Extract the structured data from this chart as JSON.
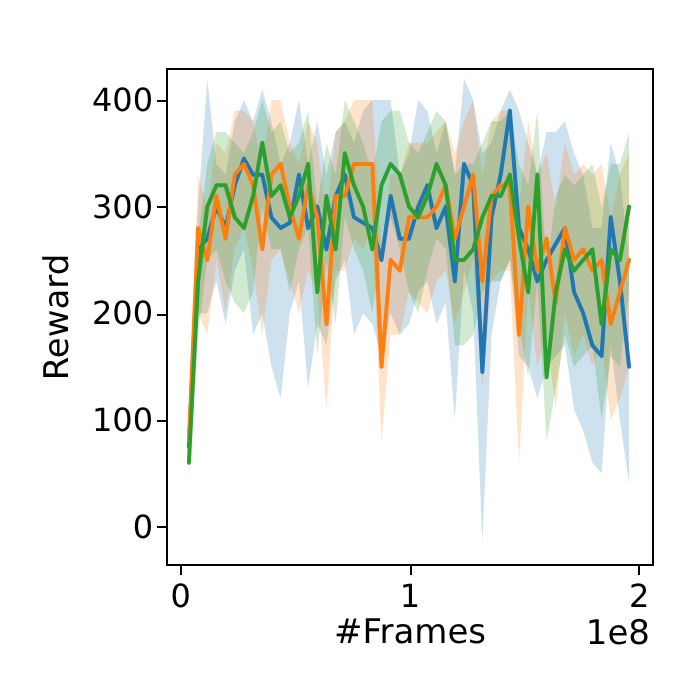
{
  "chart_data": {
    "type": "line",
    "xlabel": "#Frames",
    "ylabel": "Reward",
    "annotations": [
      "1e8"
    ],
    "x": [
      0.04,
      0.08,
      0.12,
      0.16,
      0.2,
      0.24,
      0.28,
      0.32,
      0.36,
      0.4,
      0.44,
      0.48,
      0.52,
      0.56,
      0.6,
      0.64,
      0.68,
      0.72,
      0.76,
      0.8,
      0.84,
      0.88,
      0.92,
      0.96,
      1.0,
      1.04,
      1.08,
      1.12,
      1.16,
      1.2,
      1.24,
      1.28,
      1.32,
      1.36,
      1.4,
      1.44,
      1.48,
      1.52,
      1.56,
      1.6,
      1.64,
      1.68,
      1.72,
      1.76,
      1.8,
      1.84,
      1.88,
      1.92,
      1.96
    ],
    "series": [
      {
        "color": "#1f77b4",
        "values": [
          75,
          260,
          270,
          300,
          280,
          320,
          345,
          330,
          330,
          290,
          280,
          285,
          330,
          280,
          300,
          260,
          310,
          330,
          290,
          285,
          280,
          250,
          310,
          270,
          270,
          300,
          320,
          280,
          300,
          230,
          340,
          320,
          145,
          290,
          330,
          390,
          280,
          260,
          230,
          250,
          265,
          280,
          220,
          200,
          170,
          160,
          290,
          230,
          150
        ],
        "lower": [
          60,
          200,
          200,
          230,
          190,
          240,
          260,
          180,
          200,
          150,
          120,
          200,
          230,
          130,
          190,
          170,
          230,
          250,
          180,
          200,
          190,
          160,
          200,
          180,
          190,
          220,
          230,
          190,
          210,
          100,
          240,
          200,
          -15,
          180,
          230,
          250,
          160,
          150,
          120,
          150,
          160,
          170,
          110,
          90,
          60,
          50,
          170,
          100,
          40
        ],
        "upper": [
          90,
          300,
          420,
          340,
          330,
          380,
          400,
          380,
          410,
          380,
          340,
          360,
          400,
          340,
          380,
          330,
          370,
          380,
          360,
          390,
          400,
          400,
          400,
          330,
          350,
          400,
          390,
          350,
          380,
          330,
          420,
          400,
          350,
          360,
          390,
          410,
          390,
          360,
          330,
          370,
          370,
          380,
          350,
          330,
          280,
          280,
          360,
          330,
          250
        ]
      },
      {
        "color": "#ff7f0e",
        "values": [
          80,
          280,
          250,
          310,
          270,
          330,
          340,
          320,
          260,
          330,
          340,
          300,
          270,
          320,
          290,
          190,
          310,
          310,
          340,
          340,
          340,
          150,
          250,
          240,
          290,
          290,
          290,
          300,
          320,
          270,
          300,
          330,
          230,
          310,
          320,
          320,
          180,
          300,
          240,
          270,
          210,
          280,
          250,
          260,
          240,
          250,
          190,
          220,
          250
        ],
        "lower": [
          70,
          200,
          180,
          250,
          200,
          260,
          280,
          240,
          180,
          250,
          260,
          230,
          200,
          240,
          220,
          110,
          240,
          240,
          270,
          260,
          280,
          80,
          180,
          180,
          220,
          210,
          200,
          230,
          240,
          190,
          220,
          250,
          130,
          230,
          240,
          240,
          60,
          220,
          150,
          180,
          110,
          200,
          160,
          180,
          150,
          170,
          100,
          120,
          150
        ],
        "upper": [
          100,
          330,
          300,
          360,
          350,
          390,
          390,
          380,
          340,
          400,
          400,
          360,
          340,
          380,
          360,
          290,
          370,
          380,
          400,
          400,
          400,
          260,
          330,
          330,
          360,
          360,
          360,
          370,
          380,
          350,
          380,
          400,
          330,
          380,
          390,
          390,
          300,
          380,
          330,
          350,
          300,
          360,
          330,
          340,
          330,
          340,
          290,
          330,
          350
        ]
      },
      {
        "color": "#2ca02c",
        "values": [
          60,
          230,
          300,
          320,
          320,
          290,
          280,
          310,
          360,
          310,
          320,
          290,
          310,
          340,
          220,
          310,
          260,
          350,
          320,
          300,
          260,
          320,
          340,
          330,
          300,
          290,
          310,
          340,
          320,
          250,
          250,
          260,
          290,
          310,
          310,
          330,
          270,
          220,
          330,
          140,
          220,
          260,
          240,
          250,
          260,
          190,
          260,
          250,
          300
        ],
        "lower": [
          50,
          180,
          250,
          260,
          230,
          210,
          200,
          220,
          300,
          260,
          260,
          220,
          260,
          280,
          160,
          250,
          190,
          290,
          260,
          240,
          200,
          260,
          290,
          260,
          220,
          200,
          240,
          270,
          260,
          170,
          170,
          180,
          220,
          230,
          230,
          250,
          190,
          140,
          230,
          80,
          130,
          180,
          150,
          160,
          170,
          100,
          160,
          150,
          220
        ],
        "upper": [
          70,
          270,
          340,
          370,
          370,
          360,
          350,
          370,
          400,
          370,
          380,
          350,
          360,
          390,
          300,
          360,
          330,
          400,
          380,
          360,
          330,
          380,
          390,
          390,
          360,
          350,
          370,
          390,
          380,
          330,
          340,
          340,
          360,
          380,
          380,
          390,
          340,
          320,
          390,
          240,
          310,
          330,
          320,
          330,
          340,
          300,
          340,
          340,
          370
        ]
      }
    ],
    "xlim": [
      -0.06,
      2.06
    ],
    "ylim": [
      -35,
      430
    ],
    "xticks": [
      0,
      1,
      2
    ],
    "yticks": [
      0,
      100,
      200,
      300,
      400
    ],
    "grid": false
  }
}
